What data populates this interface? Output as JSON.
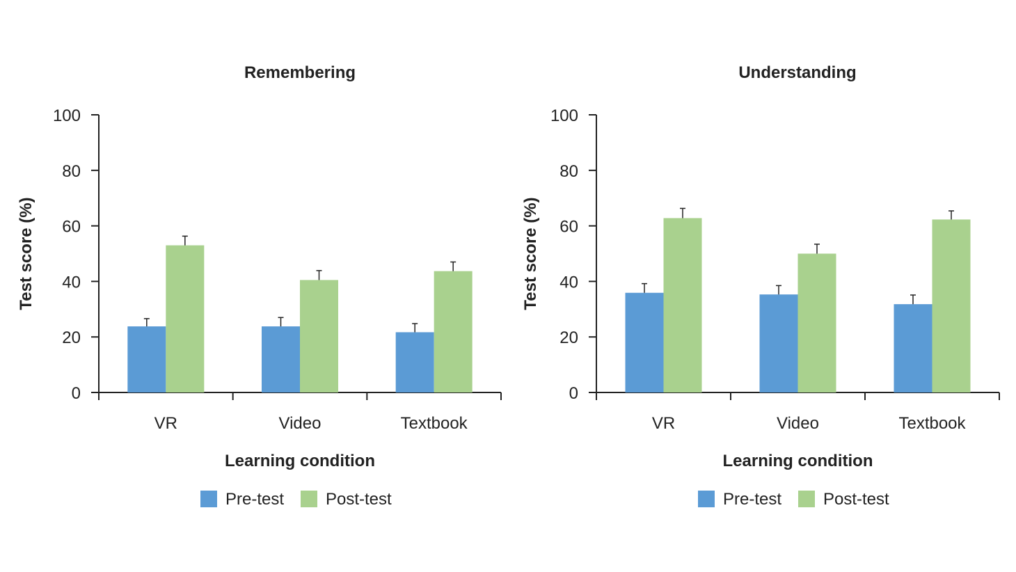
{
  "chart_data": [
    {
      "type": "bar",
      "title": "Remembering",
      "xlabel": "Learning condition",
      "ylabel": "Test score (%)",
      "ylim": [
        0,
        100
      ],
      "yticks": [
        0,
        20,
        40,
        60,
        80,
        100
      ],
      "categories": [
        "VR",
        "Video",
        "Textbook"
      ],
      "series": [
        {
          "name": "Pre-test",
          "color": "#5b9bd5",
          "values": [
            23.8,
            23.8,
            21.7
          ],
          "errors": [
            2.8,
            3.2,
            3.1
          ]
        },
        {
          "name": "Post-test",
          "color": "#a9d18e",
          "values": [
            53,
            40.5,
            43.7
          ],
          "errors": [
            3.3,
            3.4,
            3.3
          ]
        }
      ],
      "grid": false,
      "legend": "bottom-center"
    },
    {
      "type": "bar",
      "title": "Understanding",
      "xlabel": "Learning condition",
      "ylabel": "Test score (%)",
      "ylim": [
        0,
        100
      ],
      "yticks": [
        0,
        20,
        40,
        60,
        80,
        100
      ],
      "categories": [
        "VR",
        "Video",
        "Textbook"
      ],
      "series": [
        {
          "name": "Pre-test",
          "color": "#5b9bd5",
          "values": [
            35.9,
            35.3,
            31.8
          ],
          "errors": [
            3.3,
            3.2,
            3.3
          ]
        },
        {
          "name": "Post-test",
          "color": "#a9d18e",
          "values": [
            62.8,
            50,
            62.3
          ],
          "errors": [
            3.5,
            3.4,
            3.1
          ]
        }
      ],
      "grid": false,
      "legend": "bottom-center"
    }
  ]
}
